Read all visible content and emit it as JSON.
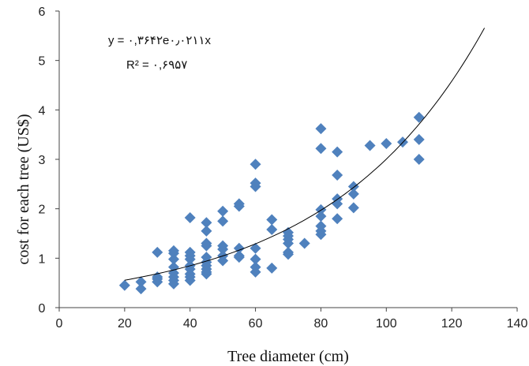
{
  "chart_data": {
    "type": "scatter",
    "title": "",
    "xlabel": "Tree diameter (cm)",
    "ylabel": "cost for each tree (US$)",
    "xlim": [
      0,
      140
    ],
    "ylim": [
      0,
      6
    ],
    "xticks": [
      "0",
      "20",
      "40",
      "60",
      "80",
      "100",
      "120",
      "140"
    ],
    "yticks": [
      "0",
      "1",
      "2",
      "3",
      "4",
      "5",
      "6"
    ],
    "grid": false,
    "legend": "none",
    "marker_color": "#4f81bd",
    "trendline_color": "#000000",
    "trendline": {
      "type": "exponential",
      "a": 0.3642,
      "b": 0.0211,
      "x_range": [
        20,
        130
      ],
      "equation_text": "y = ۰,۳۶۴۲e۰٫۰۲۱۱x",
      "r2_text": "R² = ۰,۶۹۵۷"
    },
    "points": [
      [
        20,
        0.45
      ],
      [
        25,
        0.38
      ],
      [
        25,
        0.52
      ],
      [
        30,
        0.52
      ],
      [
        30,
        0.58
      ],
      [
        30,
        0.62
      ],
      [
        30,
        1.12
      ],
      [
        35,
        0.48
      ],
      [
        35,
        0.55
      ],
      [
        35,
        0.62
      ],
      [
        35,
        0.7
      ],
      [
        35,
        0.82
      ],
      [
        35,
        0.98
      ],
      [
        35,
        1.1
      ],
      [
        35,
        1.15
      ],
      [
        40,
        0.55
      ],
      [
        40,
        0.62
      ],
      [
        40,
        0.68
      ],
      [
        40,
        0.78
      ],
      [
        40,
        0.85
      ],
      [
        40,
        0.98
      ],
      [
        40,
        1.05
      ],
      [
        40,
        1.12
      ],
      [
        40,
        1.82
      ],
      [
        45,
        0.68
      ],
      [
        45,
        0.72
      ],
      [
        45,
        0.78
      ],
      [
        45,
        0.85
      ],
      [
        45,
        0.92
      ],
      [
        45,
        1.02
      ],
      [
        45,
        1.25
      ],
      [
        45,
        1.3
      ],
      [
        45,
        1.55
      ],
      [
        45,
        1.72
      ],
      [
        50,
        0.95
      ],
      [
        50,
        1.05
      ],
      [
        50,
        1.18
      ],
      [
        50,
        1.25
      ],
      [
        50,
        1.75
      ],
      [
        50,
        1.95
      ],
      [
        55,
        1.02
      ],
      [
        55,
        1.05
      ],
      [
        55,
        1.2
      ],
      [
        55,
        2.05
      ],
      [
        55,
        2.1
      ],
      [
        60,
        0.72
      ],
      [
        60,
        0.82
      ],
      [
        60,
        0.98
      ],
      [
        60,
        1.2
      ],
      [
        60,
        2.45
      ],
      [
        60,
        2.52
      ],
      [
        60,
        2.9
      ],
      [
        65,
        0.8
      ],
      [
        65,
        1.58
      ],
      [
        65,
        1.78
      ],
      [
        70,
        1.08
      ],
      [
        70,
        1.12
      ],
      [
        70,
        1.3
      ],
      [
        70,
        1.38
      ],
      [
        70,
        1.45
      ],
      [
        70,
        1.52
      ],
      [
        75,
        1.3
      ],
      [
        80,
        1.48
      ],
      [
        80,
        1.55
      ],
      [
        80,
        1.65
      ],
      [
        80,
        1.85
      ],
      [
        80,
        1.98
      ],
      [
        80,
        3.22
      ],
      [
        80,
        3.62
      ],
      [
        85,
        1.8
      ],
      [
        85,
        2.1
      ],
      [
        85,
        2.2
      ],
      [
        85,
        2.68
      ],
      [
        85,
        3.15
      ],
      [
        90,
        2.02
      ],
      [
        90,
        2.3
      ],
      [
        90,
        2.45
      ],
      [
        95,
        3.28
      ],
      [
        100,
        3.32
      ],
      [
        105,
        3.35
      ],
      [
        110,
        3.0
      ],
      [
        110,
        3.4
      ],
      [
        110,
        3.85
      ]
    ]
  }
}
